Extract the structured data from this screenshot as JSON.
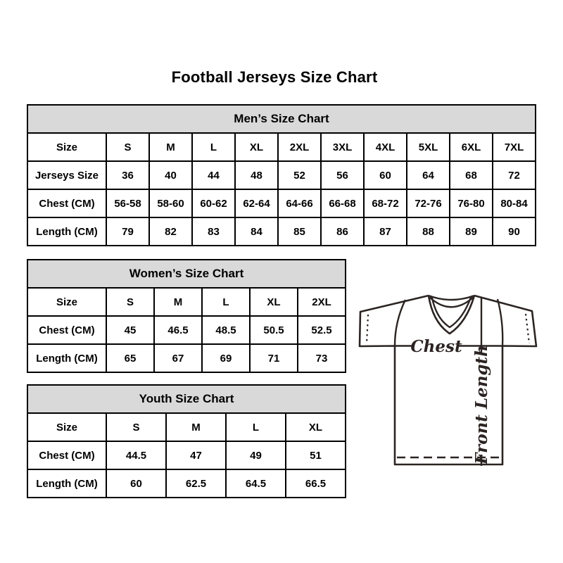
{
  "page": {
    "title": "Football Jerseys Size Chart"
  },
  "tables": {
    "mens": {
      "title": "Men’s Size Chart",
      "rows": [
        {
          "label": "Size",
          "values": [
            "S",
            "M",
            "L",
            "XL",
            "2XL",
            "3XL",
            "4XL",
            "5XL",
            "6XL",
            "7XL"
          ]
        },
        {
          "label": "Jerseys Size",
          "values": [
            "36",
            "40",
            "44",
            "48",
            "52",
            "56",
            "60",
            "64",
            "68",
            "72"
          ]
        },
        {
          "label": "Chest (CM)",
          "values": [
            "56-58",
            "58-60",
            "60-62",
            "62-64",
            "64-66",
            "66-68",
            "68-72",
            "72-76",
            "76-80",
            "80-84"
          ]
        },
        {
          "label": "Length (CM)",
          "values": [
            "79",
            "82",
            "83",
            "84",
            "85",
            "86",
            "87",
            "88",
            "89",
            "90"
          ]
        }
      ]
    },
    "womens": {
      "title": "Women’s Size Chart",
      "rows": [
        {
          "label": "Size",
          "values": [
            "S",
            "M",
            "L",
            "XL",
            "2XL"
          ]
        },
        {
          "label": "Chest (CM)",
          "values": [
            "45",
            "46.5",
            "48.5",
            "50.5",
            "52.5"
          ]
        },
        {
          "label": "Length (CM)",
          "values": [
            "65",
            "67",
            "69",
            "71",
            "73"
          ]
        }
      ]
    },
    "youth": {
      "title": "Youth Size Chart",
      "rows": [
        {
          "label": "Size",
          "values": [
            "S",
            "M",
            "L",
            "XL"
          ]
        },
        {
          "label": "Chest (CM)",
          "values": [
            "44.5",
            "47",
            "49",
            "51"
          ]
        },
        {
          "label": "Length (CM)",
          "values": [
            "60",
            "62.5",
            "64.5",
            "66.5"
          ]
        }
      ]
    }
  },
  "diagram": {
    "chest_label": "Chest",
    "front_length_label": "Front Length"
  },
  "colors": {
    "header_bg": "#d9d9d9",
    "table_border": "#000000",
    "diagram_stroke": "#2b2422"
  }
}
